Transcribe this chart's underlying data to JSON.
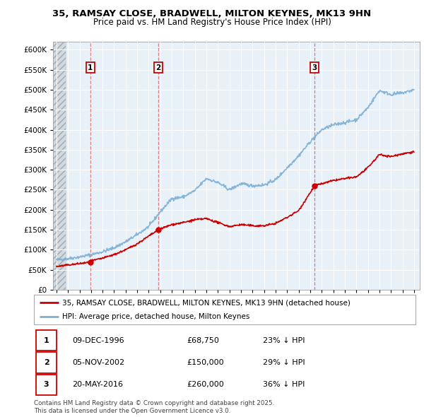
{
  "title1": "35, RAMSAY CLOSE, BRADWELL, MILTON KEYNES, MK13 9HN",
  "title2": "Price paid vs. HM Land Registry's House Price Index (HPI)",
  "ylim": [
    0,
    620000
  ],
  "yticks": [
    0,
    50000,
    100000,
    150000,
    200000,
    250000,
    300000,
    350000,
    400000,
    450000,
    500000,
    550000,
    600000
  ],
  "ytick_labels": [
    "£0",
    "£50K",
    "£100K",
    "£150K",
    "£200K",
    "£250K",
    "£300K",
    "£350K",
    "£400K",
    "£450K",
    "£500K",
    "£550K",
    "£600K"
  ],
  "xlim_start": 1993.7,
  "xlim_end": 2025.5,
  "hatch_end": 1994.83,
  "purchases": [
    {
      "year": 1996.94,
      "price": 68750,
      "label": "1"
    },
    {
      "year": 2002.84,
      "price": 150000,
      "label": "2"
    },
    {
      "year": 2016.38,
      "price": 260000,
      "label": "3"
    }
  ],
  "purchase_color": "#cc0000",
  "hpi_color": "#7bafd4",
  "legend_entries": [
    "35, RAMSAY CLOSE, BRADWELL, MILTON KEYNES, MK13 9HN (detached house)",
    "HPI: Average price, detached house, Milton Keynes"
  ],
  "table_entries": [
    {
      "num": "1",
      "date": "09-DEC-1996",
      "price": "£68,750",
      "hpi": "23% ↓ HPI"
    },
    {
      "num": "2",
      "date": "05-NOV-2002",
      "price": "£150,000",
      "hpi": "29% ↓ HPI"
    },
    {
      "num": "3",
      "date": "20-MAY-2016",
      "price": "£260,000",
      "hpi": "36% ↓ HPI"
    }
  ],
  "footnote": "Contains HM Land Registry data © Crown copyright and database right 2025.\nThis data is licensed under the Open Government Licence v3.0.",
  "bg_color": "#e8f0f8",
  "grid_color": "#ffffff",
  "hpi_anchors": [
    [
      1994.0,
      75000
    ],
    [
      1995.0,
      78000
    ],
    [
      1996.0,
      82000
    ],
    [
      1997.0,
      88000
    ],
    [
      1998.0,
      95000
    ],
    [
      1999.0,
      105000
    ],
    [
      2000.0,
      120000
    ],
    [
      2001.0,
      138000
    ],
    [
      2002.0,
      158000
    ],
    [
      2003.0,
      195000
    ],
    [
      2004.0,
      228000
    ],
    [
      2005.0,
      232000
    ],
    [
      2006.0,
      248000
    ],
    [
      2007.0,
      278000
    ],
    [
      2008.0,
      268000
    ],
    [
      2009.0,
      250000
    ],
    [
      2010.0,
      265000
    ],
    [
      2011.0,
      260000
    ],
    [
      2012.0,
      262000
    ],
    [
      2013.0,
      275000
    ],
    [
      2014.0,
      305000
    ],
    [
      2015.0,
      335000
    ],
    [
      2016.0,
      370000
    ],
    [
      2017.0,
      400000
    ],
    [
      2018.0,
      412000
    ],
    [
      2019.0,
      418000
    ],
    [
      2020.0,
      425000
    ],
    [
      2021.0,
      455000
    ],
    [
      2022.0,
      498000
    ],
    [
      2023.0,
      488000
    ],
    [
      2024.0,
      492000
    ],
    [
      2025.0,
      500000
    ]
  ],
  "red_anchors": [
    [
      1994.0,
      58000
    ],
    [
      1995.0,
      62000
    ],
    [
      1996.94,
      68750
    ],
    [
      1997.0,
      72000
    ],
    [
      1998.0,
      79000
    ],
    [
      1999.0,
      88000
    ],
    [
      2000.0,
      100000
    ],
    [
      2001.0,
      115000
    ],
    [
      2002.84,
      150000
    ],
    [
      2003.0,
      152000
    ],
    [
      2004.0,
      163000
    ],
    [
      2005.0,
      168000
    ],
    [
      2006.0,
      175000
    ],
    [
      2007.0,
      178000
    ],
    [
      2008.0,
      168000
    ],
    [
      2009.0,
      158000
    ],
    [
      2010.0,
      163000
    ],
    [
      2011.0,
      160000
    ],
    [
      2012.0,
      160000
    ],
    [
      2013.0,
      166000
    ],
    [
      2014.0,
      181000
    ],
    [
      2015.0,
      198000
    ],
    [
      2016.38,
      260000
    ],
    [
      2017.0,
      265000
    ],
    [
      2018.0,
      273000
    ],
    [
      2019.0,
      278000
    ],
    [
      2020.0,
      282000
    ],
    [
      2021.0,
      305000
    ],
    [
      2022.0,
      338000
    ],
    [
      2023.0,
      333000
    ],
    [
      2024.0,
      340000
    ],
    [
      2025.0,
      345000
    ]
  ]
}
